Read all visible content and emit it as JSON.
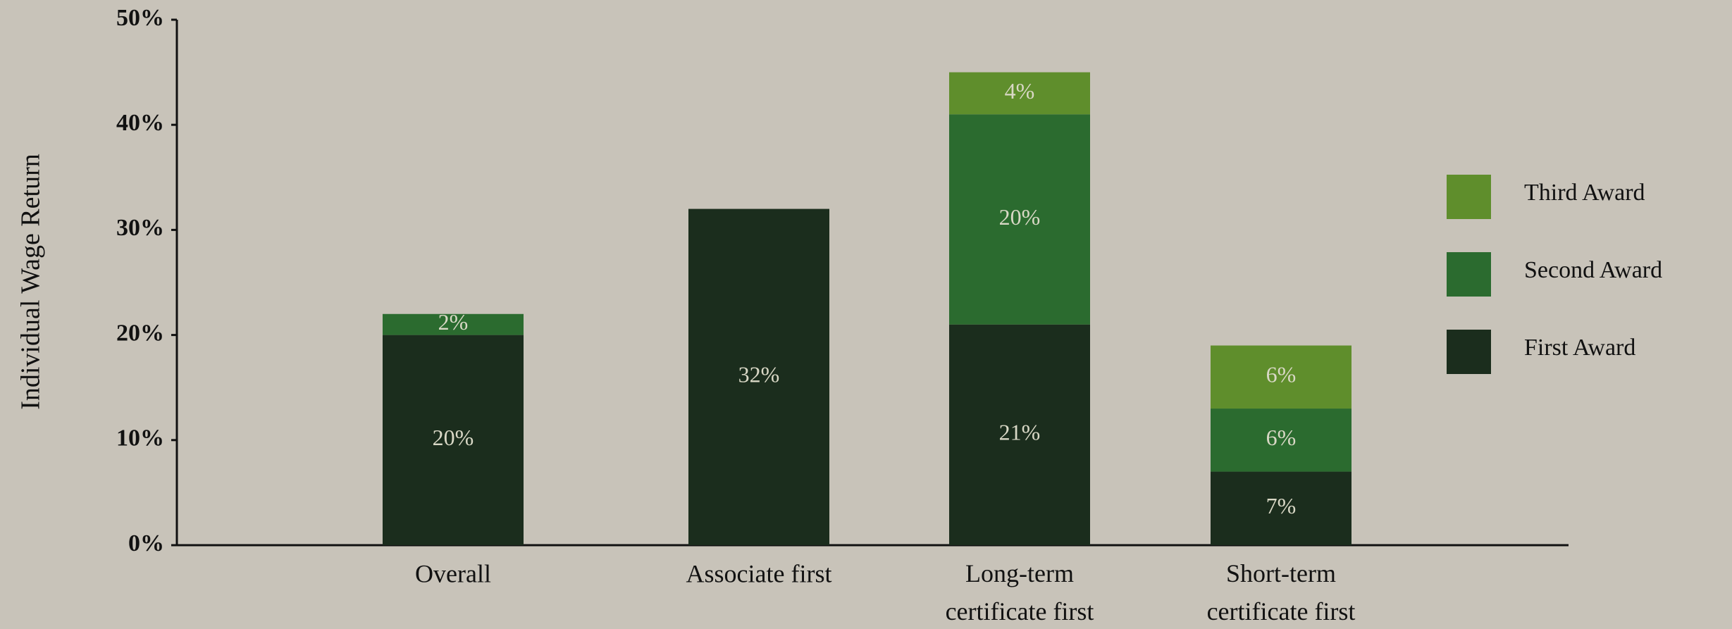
{
  "chart_data": {
    "type": "stacked-bar",
    "y_label": "Individual Wage Return",
    "categories": [
      "Overall",
      "Associate first",
      "Long-term certificate first",
      "Short-term certificate first"
    ],
    "series": [
      {
        "name": "First Award",
        "color": "#1b2d1d",
        "values": [
          20,
          32,
          21,
          7
        ],
        "value_labels": [
          "20%",
          "32%",
          "21%",
          "7%"
        ]
      },
      {
        "name": "Second Award",
        "color": "#2b6b2f",
        "values": [
          2,
          null,
          20,
          6
        ],
        "value_labels": [
          "2%",
          null,
          "20%",
          "6%"
        ]
      },
      {
        "name": "Third Award",
        "color": "#5f8e2c",
        "values": [
          null,
          null,
          4,
          6
        ],
        "value_labels": [
          null,
          null,
          "4%",
          "6%"
        ]
      }
    ],
    "ylim": [
      0,
      50
    ],
    "yticks": [
      {
        "value": 0,
        "label": "0%"
      },
      {
        "value": 10,
        "label": "10%"
      },
      {
        "value": 20,
        "label": "20%"
      },
      {
        "value": 30,
        "label": "30%"
      },
      {
        "value": 40,
        "label": "40%"
      },
      {
        "value": 50,
        "label": "50%"
      }
    ],
    "grid": false,
    "legend": "right"
  }
}
